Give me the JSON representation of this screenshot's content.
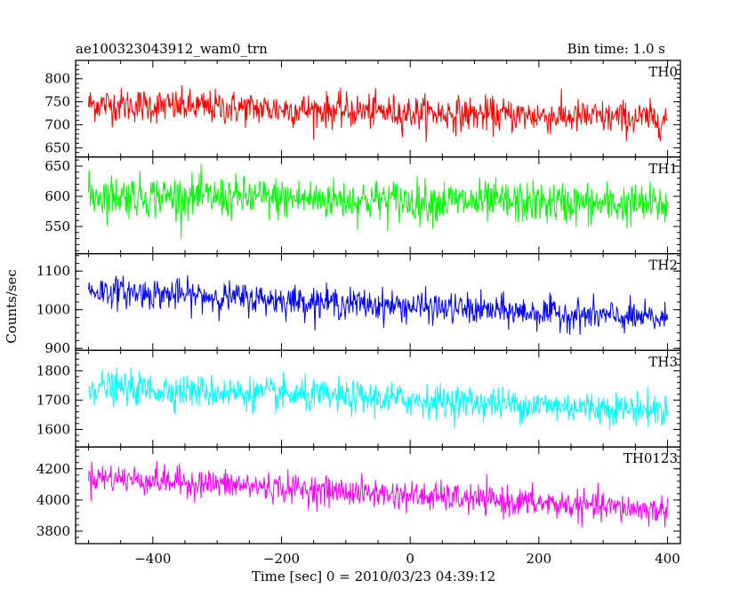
{
  "header": {
    "left_title": "ae100323043912_wam0_trn",
    "right_title": "Bin time: 1.0 s"
  },
  "axes": {
    "xlabel": "Time [sec] 0 = 2010/03/23 04:39:12",
    "ylabel": "Counts/sec"
  },
  "chart_data": {
    "type": "line",
    "title": "ae100323043912_wam0_trn",
    "subtitle": "Bin time: 1.0 s",
    "xlabel": "Time [sec] 0 = 2010/03/23 04:39:12",
    "ylabel": "Counts/sec",
    "xlim": [
      -520,
      420
    ],
    "xticks": [
      -400,
      -200,
      0,
      200,
      400
    ],
    "x_data_range": [
      -500,
      400
    ],
    "bin_time_s": 1.0,
    "panels": [
      {
        "name": "TH0",
        "color": "#ff0000",
        "ylim": [
          630,
          840
        ],
        "yticks": [
          650,
          700,
          750,
          800
        ],
        "trend_start": 745,
        "trend_end": 712,
        "noise_amplitude": 30
      },
      {
        "name": "TH1",
        "color": "#00ff00",
        "ylim": [
          505,
          665
        ],
        "yticks": [
          550,
          600,
          650
        ],
        "trend_start": 602,
        "trend_end": 585,
        "noise_amplitude": 28
      },
      {
        "name": "TH2",
        "color": "#0000ff",
        "ylim": [
          895,
          1145
        ],
        "yticks": [
          900,
          1000,
          1100
        ],
        "trend_start": 1050,
        "trend_end": 975,
        "noise_amplitude": 32
      },
      {
        "name": "TH3",
        "color": "#00ffff",
        "ylim": [
          1540,
          1870
        ],
        "yticks": [
          1600,
          1700,
          1800
        ],
        "trend_start": 1745,
        "trend_end": 1665,
        "noise_amplitude": 45
      },
      {
        "name": "TH0123",
        "color": "#ff00ff",
        "ylim": [
          3720,
          4340
        ],
        "yticks": [
          3800,
          4000,
          4200
        ],
        "trend_start": 4150,
        "trend_end": 3930,
        "noise_amplitude": 75
      }
    ]
  }
}
